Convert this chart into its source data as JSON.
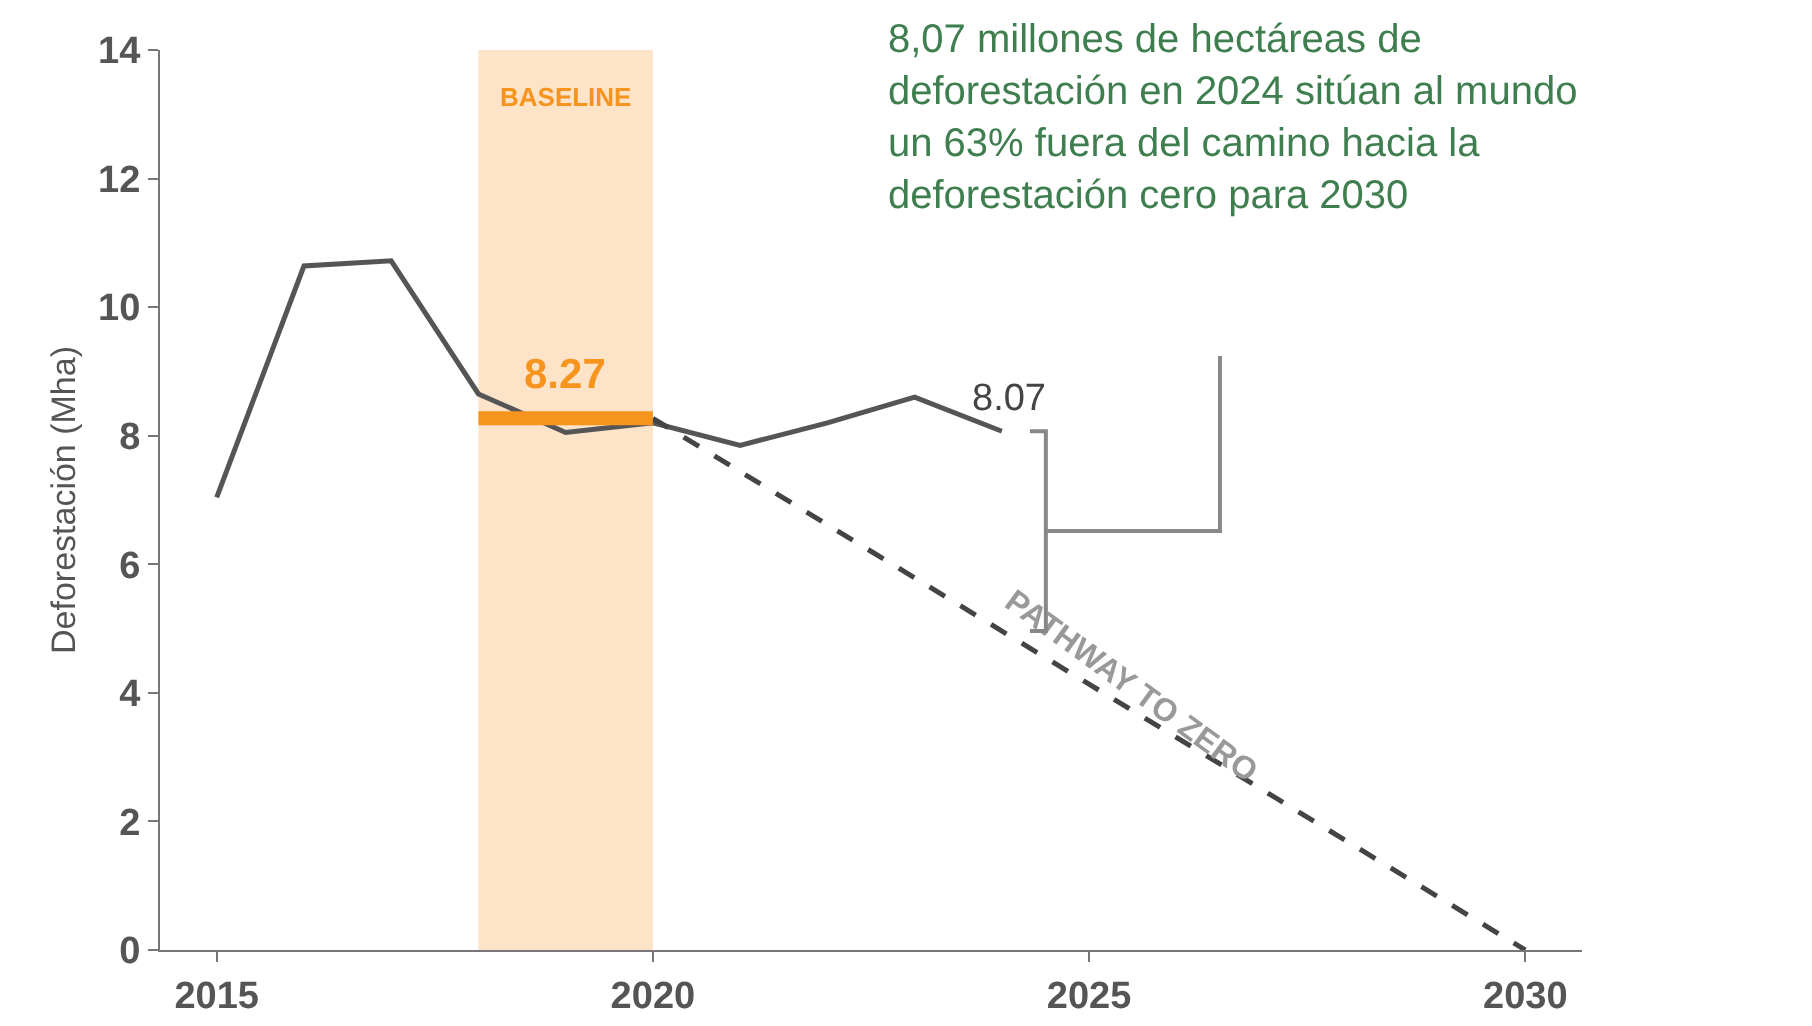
{
  "chart_data": {
    "type": "line",
    "ylabel": "Deforestación (Mha)",
    "xlim": [
      2014.35,
      2030.65
    ],
    "xticks": [
      2015,
      2020,
      2025,
      2030
    ],
    "ylim": [
      0,
      14
    ],
    "yticks": [
      0,
      2,
      4,
      6,
      8,
      10,
      12,
      14
    ],
    "grid": false,
    "marker": "none",
    "series": [
      {
        "color": "#555555",
        "line_style": "solid",
        "x": [
          2015,
          2016,
          2017,
          2018,
          2019,
          2020,
          2021,
          2022,
          2023,
          2024
        ],
        "values": [
          7.04,
          10.64,
          10.72,
          8.65,
          8.05,
          8.2,
          7.85,
          8.2,
          8.6,
          8.07
        ]
      },
      {
        "color": "#444444",
        "line_style": "dashed",
        "x": [
          2020,
          2030
        ],
        "values": [
          8.27,
          0
        ]
      },
      {
        "color": "#f7941d",
        "line_style": "solid",
        "x": [
          2018,
          2020
        ],
        "values": [
          8.27,
          8.27
        ]
      }
    ],
    "bands": [
      {
        "axis": "x",
        "from": 2018,
        "to": 2020,
        "label": "BASELINE",
        "color": "#fde3c8"
      }
    ],
    "annotations": [
      {
        "text": "8.27",
        "x": 2019,
        "y": 8.27
      },
      {
        "text": "8.07",
        "x": 2024,
        "y": 8.07
      },
      {
        "text": "PATHWAY TO ZERO",
        "x": 2025.2,
        "y": 4.1
      },
      "8,07 millones de hectáreas de deforestación en 2024 sitúan al mundo un 63% fuera del camino hacia la deforestación cero para 2030"
    ]
  }
}
